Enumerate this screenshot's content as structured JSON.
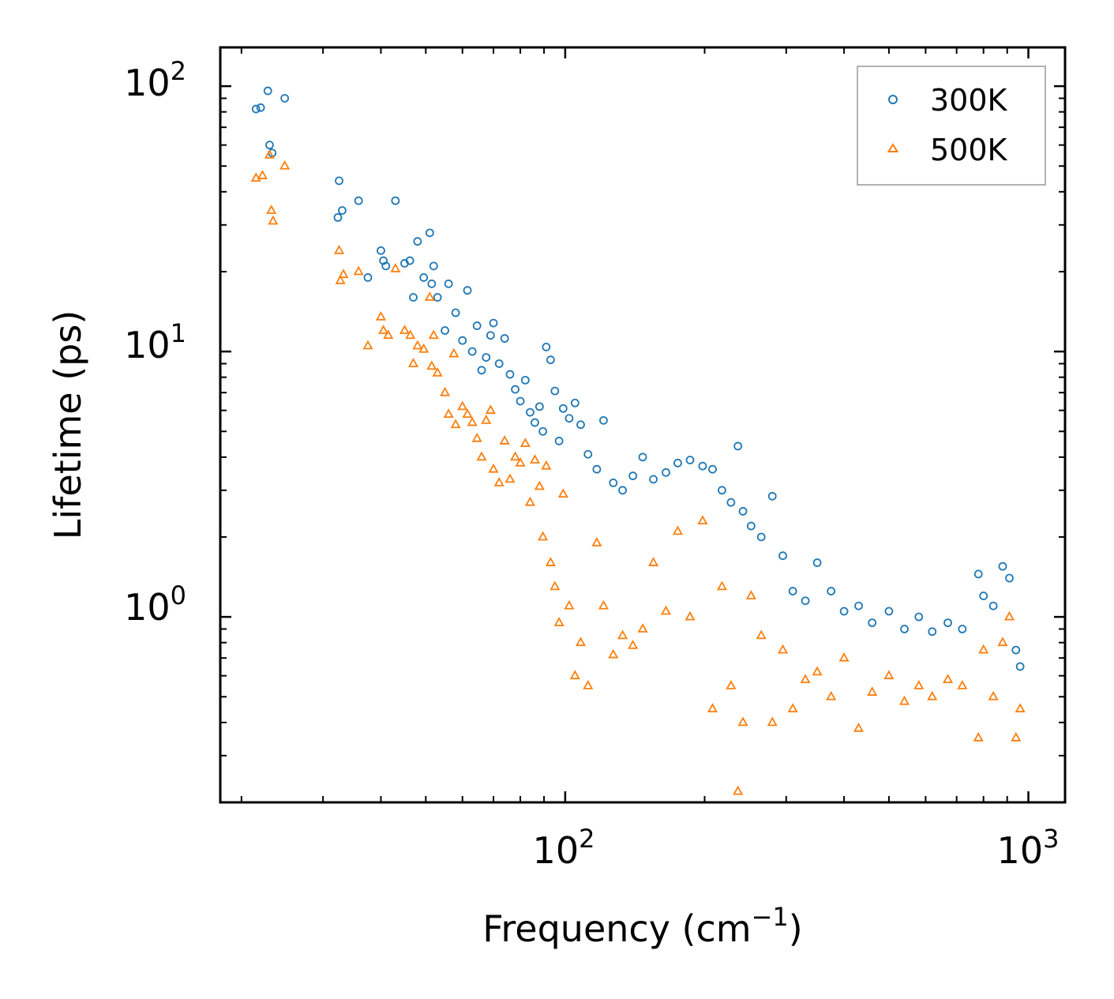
{
  "chart_data": {
    "type": "scatter",
    "title": "",
    "xlabel": "Frequency (cm",
    "xlabel_sup": "−1",
    "xlabel_close": ")",
    "ylabel": "Lifetime (ps)",
    "xscale": "log",
    "yscale": "log",
    "xlim": [
      18,
      1200
    ],
    "ylim": [
      0.2,
      140
    ],
    "x_ticks": [
      {
        "value": 100,
        "base": "10",
        "exp": "2"
      },
      {
        "value": 1000,
        "base": "10",
        "exp": "3"
      }
    ],
    "y_ticks": [
      {
        "value": 1,
        "base": "10",
        "exp": "0"
      },
      {
        "value": 10,
        "base": "10",
        "exp": "1"
      },
      {
        "value": 100,
        "base": "10",
        "exp": "2"
      }
    ],
    "legend": {
      "placement": "top-right"
    },
    "series": [
      {
        "name": "300K",
        "marker": "circle",
        "color": "#1f77b4",
        "points": [
          [
            21.5,
            82
          ],
          [
            22.0,
            83
          ],
          [
            22.8,
            96
          ],
          [
            23.0,
            60
          ],
          [
            23.3,
            56
          ],
          [
            24.8,
            90
          ],
          [
            32.5,
            44
          ],
          [
            32.3,
            32
          ],
          [
            33.0,
            34
          ],
          [
            35.8,
            37
          ],
          [
            37.5,
            19
          ],
          [
            40.0,
            24
          ],
          [
            40.5,
            22
          ],
          [
            41.0,
            21
          ],
          [
            43.0,
            37
          ],
          [
            45.0,
            21.5
          ],
          [
            46.2,
            22
          ],
          [
            47.0,
            16
          ],
          [
            48.0,
            26
          ],
          [
            49.5,
            19
          ],
          [
            51.0,
            28
          ],
          [
            51.5,
            18
          ],
          [
            52.0,
            21
          ],
          [
            53.0,
            16
          ],
          [
            55.0,
            12
          ],
          [
            56.0,
            18
          ],
          [
            58.0,
            14
          ],
          [
            60.0,
            11
          ],
          [
            61.5,
            17
          ],
          [
            63.0,
            10
          ],
          [
            64.5,
            12.5
          ],
          [
            66.0,
            8.5
          ],
          [
            67.5,
            9.5
          ],
          [
            69.0,
            11.5
          ],
          [
            70.0,
            12.8
          ],
          [
            72.0,
            9.0
          ],
          [
            74.0,
            11.2
          ],
          [
            76.0,
            8.2
          ],
          [
            78.0,
            7.2
          ],
          [
            80.0,
            6.5
          ],
          [
            82.0,
            7.8
          ],
          [
            84.0,
            5.9
          ],
          [
            86.0,
            5.4
          ],
          [
            88.0,
            6.2
          ],
          [
            89.5,
            5.0
          ],
          [
            91.0,
            10.4
          ],
          [
            93.0,
            9.3
          ],
          [
            95.0,
            7.1
          ],
          [
            97.0,
            4.6
          ],
          [
            99.0,
            6.1
          ],
          [
            102.0,
            5.6
          ],
          [
            105.0,
            6.4
          ],
          [
            108.0,
            5.3
          ],
          [
            112.0,
            4.1
          ],
          [
            117.0,
            3.6
          ],
          [
            121.0,
            5.5
          ],
          [
            127.0,
            3.2
          ],
          [
            133.0,
            3.0
          ],
          [
            140.0,
            3.4
          ],
          [
            147.0,
            4.0
          ],
          [
            155.0,
            3.3
          ],
          [
            165.0,
            3.5
          ],
          [
            175.0,
            3.8
          ],
          [
            186.0,
            3.9
          ],
          [
            198.0,
            3.7
          ],
          [
            208.0,
            3.6
          ],
          [
            218.0,
            3.0
          ],
          [
            228.0,
            2.7
          ],
          [
            236.0,
            4.4
          ],
          [
            242.0,
            2.5
          ],
          [
            252.0,
            2.2
          ],
          [
            265.0,
            2.0
          ],
          [
            280.0,
            2.85
          ],
          [
            295.0,
            1.7
          ],
          [
            310.0,
            1.25
          ],
          [
            330.0,
            1.15
          ],
          [
            350.0,
            1.6
          ],
          [
            375.0,
            1.25
          ],
          [
            400.0,
            1.05
          ],
          [
            430.0,
            1.1
          ],
          [
            460.0,
            0.95
          ],
          [
            500.0,
            1.05
          ],
          [
            540.0,
            0.9
          ],
          [
            580.0,
            1.0
          ],
          [
            620.0,
            0.88
          ],
          [
            670.0,
            0.95
          ],
          [
            720.0,
            0.9
          ],
          [
            780.0,
            1.45
          ],
          [
            800.0,
            1.2
          ],
          [
            840.0,
            1.1
          ],
          [
            880.0,
            1.55
          ],
          [
            910.0,
            1.4
          ],
          [
            940.0,
            0.75
          ],
          [
            960.0,
            0.65
          ]
        ]
      },
      {
        "name": "500K",
        "marker": "triangle",
        "color": "#ff7f0e",
        "points": [
          [
            21.5,
            45
          ],
          [
            22.2,
            46
          ],
          [
            23.0,
            55
          ],
          [
            23.2,
            34
          ],
          [
            23.4,
            31
          ],
          [
            24.8,
            50
          ],
          [
            32.5,
            24
          ],
          [
            32.7,
            18.5
          ],
          [
            33.2,
            19.5
          ],
          [
            35.8,
            20
          ],
          [
            37.5,
            10.5
          ],
          [
            40.0,
            13.5
          ],
          [
            40.5,
            12
          ],
          [
            41.5,
            11.5
          ],
          [
            43.0,
            20.5
          ],
          [
            45.0,
            12
          ],
          [
            46.3,
            11.5
          ],
          [
            47.0,
            9.0
          ],
          [
            48.0,
            10.5
          ],
          [
            49.5,
            10.2
          ],
          [
            51.0,
            16
          ],
          [
            51.5,
            8.8
          ],
          [
            52.0,
            11.5
          ],
          [
            53.0,
            8.3
          ],
          [
            55.0,
            7.0
          ],
          [
            56.0,
            5.8
          ],
          [
            57.5,
            9.8
          ],
          [
            58.0,
            5.3
          ],
          [
            60.0,
            6.2
          ],
          [
            61.5,
            5.8
          ],
          [
            63.0,
            5.4
          ],
          [
            64.5,
            4.7
          ],
          [
            66.0,
            4.0
          ],
          [
            67.5,
            5.5
          ],
          [
            69.0,
            6.0
          ],
          [
            70.0,
            3.6
          ],
          [
            72.0,
            3.2
          ],
          [
            74.0,
            4.6
          ],
          [
            76.0,
            3.3
          ],
          [
            78.0,
            4.0
          ],
          [
            80.0,
            3.8
          ],
          [
            82.0,
            4.5
          ],
          [
            84.0,
            2.7
          ],
          [
            86.0,
            3.9
          ],
          [
            88.0,
            3.1
          ],
          [
            89.5,
            2.0
          ],
          [
            91.0,
            3.7
          ],
          [
            93.0,
            1.6
          ],
          [
            95.0,
            1.3
          ],
          [
            97.0,
            0.95
          ],
          [
            99.0,
            2.9
          ],
          [
            102.0,
            1.1
          ],
          [
            105.0,
            0.6
          ],
          [
            108.0,
            0.8
          ],
          [
            112.0,
            0.55
          ],
          [
            117.0,
            1.9
          ],
          [
            121.0,
            1.1
          ],
          [
            127.0,
            0.72
          ],
          [
            133.0,
            0.85
          ],
          [
            140.0,
            0.78
          ],
          [
            147.0,
            0.9
          ],
          [
            155.0,
            1.6
          ],
          [
            165.0,
            1.05
          ],
          [
            175.0,
            2.1
          ],
          [
            186.0,
            1.0
          ],
          [
            198.0,
            2.3
          ],
          [
            208.0,
            0.45
          ],
          [
            218.0,
            1.3
          ],
          [
            228.0,
            0.55
          ],
          [
            236.0,
            0.22
          ],
          [
            242.0,
            0.4
          ],
          [
            252.0,
            1.2
          ],
          [
            265.0,
            0.85
          ],
          [
            280.0,
            0.4
          ],
          [
            295.0,
            0.75
          ],
          [
            310.0,
            0.45
          ],
          [
            330.0,
            0.58
          ],
          [
            350.0,
            0.62
          ],
          [
            375.0,
            0.5
          ],
          [
            400.0,
            0.7
          ],
          [
            430.0,
            0.38
          ],
          [
            460.0,
            0.52
          ],
          [
            500.0,
            0.6
          ],
          [
            540.0,
            0.48
          ],
          [
            580.0,
            0.55
          ],
          [
            620.0,
            0.5
          ],
          [
            670.0,
            0.58
          ],
          [
            720.0,
            0.55
          ],
          [
            780.0,
            0.35
          ],
          [
            800.0,
            0.75
          ],
          [
            840.0,
            0.5
          ],
          [
            880.0,
            0.8
          ],
          [
            910.0,
            1.0
          ],
          [
            940.0,
            0.35
          ],
          [
            960.0,
            0.45
          ]
        ]
      }
    ]
  }
}
